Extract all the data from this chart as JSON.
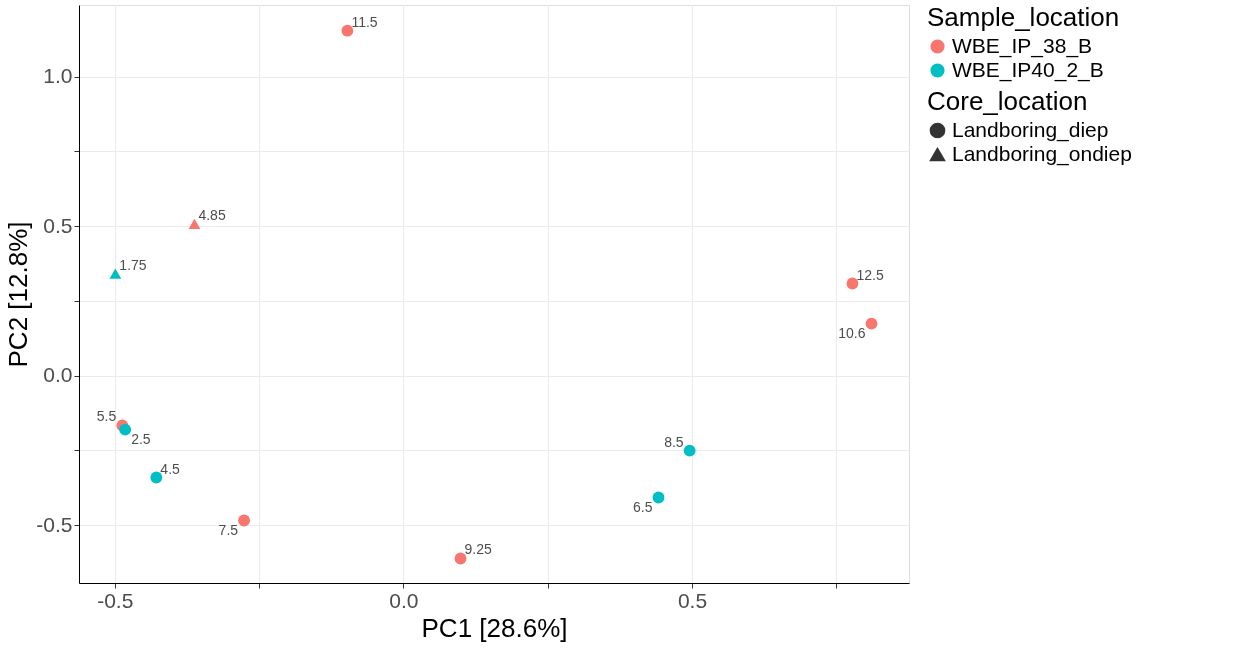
{
  "chart_data": {
    "type": "scatter",
    "xlabel": "PC1 [28.6%]",
    "ylabel": "PC2 [12.8%]",
    "legend_title": [
      "Sample_location",
      "Core_location"
    ],
    "xlim": [
      -0.562,
      0.876
    ],
    "ylim": [
      -0.694,
      1.24
    ],
    "xticks": [
      -0.5,
      {
        "value": -0.25,
        "label": null
      },
      {
        "value": 0,
        "label": "0.0"
      },
      {
        "value": 0.25,
        "label": null
      },
      0.5,
      {
        "value": 0.75,
        "label": null
      }
    ],
    "yticks": [
      -0.5,
      {
        "value": -0.25,
        "label": null
      },
      {
        "value": 0,
        "label": "0.0"
      },
      {
        "value": 0.25,
        "label": null
      },
      0.5,
      {
        "value": 0.75,
        "label": null
      },
      {
        "value": 1,
        "label": "1.0"
      }
    ],
    "grid": true,
    "legend": "right",
    "series": [
      {
        "name": "WBE_IP_38_B",
        "marker": "circle",
        "color": "#f8766d",
        "x": [
          -0.097,
          0.778,
          0.811,
          -0.487,
          -0.276,
          0.099
        ],
        "values": [
          1.154,
          0.308,
          0.174,
          -0.167,
          -0.485,
          -0.612
        ]
      },
      {
        "marker": "triangle",
        "color": "#f8766d",
        "x": [
          -0.362
        ],
        "values": [
          0.508
        ]
      },
      {
        "name": "WBE_IP40_2_B",
        "marker": "circle",
        "color": "#00bfc4",
        "x": [
          -0.482,
          -0.428,
          0.496,
          0.442
        ],
        "values": [
          -0.181,
          -0.341,
          -0.251,
          -0.408
        ]
      },
      {
        "marker": "triangle",
        "color": "#00bfc4",
        "x": [
          -0.499
        ],
        "values": [
          0.341
        ]
      },
      {
        "name": "Landboring_diep",
        "marker": "circle",
        "color": "#333333"
      },
      {
        "name": "Landboring_ondiep",
        "marker": "triangle",
        "color": "#333333"
      }
    ],
    "annotations": [
      {
        "text": "11.5",
        "x": -0.097,
        "y": 1.154
      },
      {
        "text": "12.5",
        "x": 0.778,
        "y": 0.308
      },
      {
        "text": "10.6",
        "x": 0.811,
        "y": 0.174
      },
      {
        "text": "5.5",
        "x": -0.487,
        "y": -0.167
      },
      {
        "text": "7.5",
        "x": -0.276,
        "y": -0.485
      },
      {
        "text": "9.25",
        "x": 0.099,
        "y": -0.612
      },
      {
        "text": "4.85",
        "x": -0.362,
        "y": 0.508
      },
      {
        "text": "2.5",
        "x": -0.482,
        "y": -0.181
      },
      {
        "text": "4.5",
        "x": -0.428,
        "y": -0.341
      },
      {
        "text": "8.5",
        "x": 0.496,
        "y": -0.251
      },
      {
        "text": "6.5",
        "x": 0.442,
        "y": -0.408
      },
      {
        "text": "1.75",
        "x": -0.499,
        "y": 0.341
      }
    ]
  }
}
